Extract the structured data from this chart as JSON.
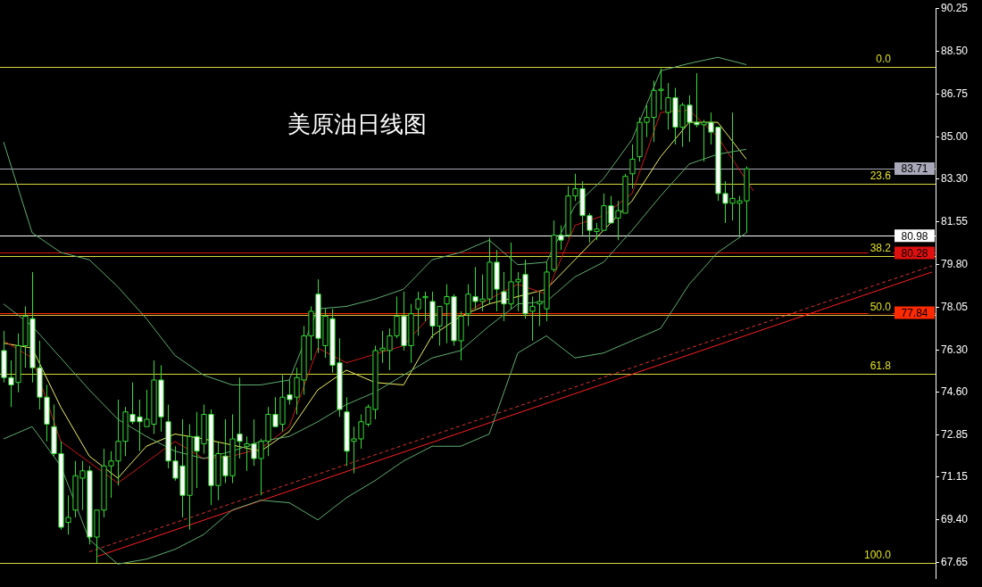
{
  "chart_data": {
    "type": "candlestick",
    "title": "美原油日线图",
    "categories": [
      null,
      null,
      null,
      null,
      null,
      null,
      null,
      null,
      null,
      null,
      null,
      null,
      null,
      null,
      null,
      null,
      null,
      null,
      null,
      null,
      null,
      null,
      null,
      null,
      null,
      null,
      null,
      null,
      null,
      null,
      null,
      null,
      null,
      null,
      null,
      null,
      null,
      null,
      null,
      null,
      null,
      null,
      null,
      null,
      null,
      null,
      null,
      null,
      null,
      null,
      null,
      null,
      null,
      null,
      null,
      null,
      null,
      null,
      null,
      null,
      null,
      null,
      null,
      null,
      null,
      null,
      null,
      null,
      null,
      null,
      null,
      null,
      null,
      null,
      null,
      null,
      null,
      null,
      null,
      null,
      null,
      null,
      null,
      null,
      null,
      null,
      null,
      null,
      null,
      null,
      null,
      null,
      null,
      null,
      null,
      null,
      null,
      null,
      null,
      null,
      null,
      null,
      null,
      null,
      null,
      null,
      null,
      null,
      null,
      null,
      null,
      null,
      null,
      null,
      null,
      null,
      null,
      null,
      null,
      null,
      null,
      null,
      null,
      null,
      null,
      null,
      null,
      null,
      null,
      null,
      null
    ],
    "color": "#33dd33",
    "colors": [
      "#ffffff",
      "#ffffff",
      "#000000",
      "#000000",
      "#ffffff",
      "#ffffff",
      "#ffffff",
      "#ffffff",
      "#ffffff",
      "#000000",
      "#000000",
      "#000000",
      "#ffffff",
      "#000000",
      "#000000",
      "#000000",
      "#000000",
      "#000000",
      "#ffffff",
      "#ffffff",
      "#000000",
      "#000000",
      "#ffffff",
      "#ffffff",
      "#ffffff",
      "#ffffff",
      "#000000",
      "#ffffff",
      "#000000",
      "#ffffff",
      "#000000",
      "#ffffff",
      "#000000",
      "#ffffff",
      "#000000",
      "#ffffff",
      "#000000",
      "#000000",
      "#ffffff",
      "#000000",
      "#ffffff",
      "#000000",
      "#000000",
      "#000000",
      "#ffffff",
      "#000000",
      "#ffffff",
      "#ffffff",
      "#ffffff",
      "#000000",
      "#000000",
      "#000000",
      "#000000",
      "#000000",
      "#000000",
      "#000000",
      "#ffffff",
      "#000000",
      "#000000",
      "#000000",
      "#ffffff",
      "#000000",
      "#000000",
      "#ffffff",
      "#000000",
      "#000000",
      "#ffffff",
      "#000000",
      "#000000",
      "#ffffff",
      "#ffffff",
      "#000000",
      "#000000",
      "#ffffff",
      "#000000",
      "#000000",
      "#000000",
      "#000000",
      "#ffffff",
      "#000000",
      "#000000",
      "#ffffff",
      "#ffffff",
      "#000000",
      "#000000",
      "#ffffff",
      "#000000",
      "#000000",
      "#000000",
      "#000000",
      "#000000",
      "#000000",
      "#000000",
      "#000000",
      "#ffffff",
      "#000000",
      "#ffffff",
      "#ffffff",
      "#000000",
      "#ffffff",
      "#ffffff",
      "#ffffff",
      "#000000",
      "#000000",
      "#000000",
      null,
      null,
      null,
      null,
      null,
      null,
      null,
      null,
      null,
      null,
      null,
      null,
      null,
      null,
      null,
      null,
      null,
      null,
      null,
      null,
      null,
      null,
      null,
      null,
      null,
      null
    ],
    "ohlc": [
      [
        76.3,
        77.1,
        75.0,
        75.2
      ],
      [
        75.2,
        75.9,
        74.0,
        74.9
      ],
      [
        75.0,
        77.0,
        74.6,
        76.5
      ],
      [
        76.5,
        78.1,
        75.6,
        77.7
      ],
      [
        77.6,
        79.5,
        75.0,
        75.6
      ],
      [
        75.6,
        76.7,
        73.9,
        74.4
      ],
      [
        74.4,
        74.9,
        72.6,
        73.3
      ],
      [
        73.2,
        74.1,
        72.0,
        72.1
      ],
      [
        72.1,
        72.6,
        69.0,
        69.1
      ],
      [
        69.3,
        70.4,
        68.8,
        69.5
      ],
      [
        69.8,
        71.8,
        69.5,
        71.2
      ],
      [
        71.1,
        71.8,
        69.8,
        71.4
      ],
      [
        71.4,
        71.6,
        68.4,
        68.7
      ],
      [
        68.7,
        69.8,
        67.65,
        69.8
      ],
      [
        69.8,
        72.3,
        69.5,
        71.6
      ],
      [
        71.6,
        72.2,
        70.3,
        71.8
      ],
      [
        71.8,
        74.3,
        70.8,
        72.6
      ],
      [
        72.6,
        74.0,
        72.0,
        73.8
      ],
      [
        73.7,
        75.0,
        73.3,
        73.4
      ],
      [
        73.6,
        74.3,
        72.2,
        73.4
      ],
      [
        73.2,
        74.7,
        73.2,
        73.5
      ],
      [
        73.3,
        75.9,
        72.9,
        75.1
      ],
      [
        75.1,
        75.7,
        73.0,
        73.6
      ],
      [
        73.4,
        74.1,
        71.5,
        71.8
      ],
      [
        71.8,
        72.4,
        71.0,
        71.1
      ],
      [
        71.6,
        73.5,
        69.5,
        70.4
      ],
      [
        70.4,
        73.3,
        69.0,
        72.8
      ],
      [
        72.8,
        73.8,
        70.7,
        72.2
      ],
      [
        72.5,
        74.1,
        72.1,
        73.7
      ],
      [
        73.7,
        73.9,
        70.0,
        70.8
      ],
      [
        70.8,
        72.6,
        70.2,
        72.1
      ],
      [
        72.0,
        73.5,
        70.9,
        71.2
      ],
      [
        71.2,
        73.7,
        70.9,
        72.7
      ],
      [
        72.9,
        75.2,
        71.9,
        72.6
      ],
      [
        72.4,
        72.8,
        71.4,
        72.5
      ],
      [
        72.5,
        73.5,
        71.6,
        71.9
      ],
      [
        71.9,
        72.7,
        70.4,
        72.6
      ],
      [
        72.6,
        74.0,
        72.0,
        73.7
      ],
      [
        73.7,
        74.4,
        73.2,
        73.2
      ],
      [
        73.3,
        75.3,
        73.0,
        74.4
      ],
      [
        74.5,
        75.1,
        74.1,
        74.3
      ],
      [
        74.4,
        75.6,
        73.7,
        75.2
      ],
      [
        75.1,
        77.3,
        74.5,
        76.9
      ],
      [
        76.9,
        78.1,
        75.9,
        77.9
      ],
      [
        78.6,
        79.2,
        76.2,
        76.8
      ],
      [
        76.5,
        78.0,
        76.0,
        77.7
      ],
      [
        77.6,
        78.0,
        75.4,
        75.7
      ],
      [
        75.8,
        76.8,
        73.6,
        73.9
      ],
      [
        73.8,
        74.4,
        71.6,
        72.2
      ],
      [
        72.6,
        73.2,
        71.3,
        72.7
      ],
      [
        72.7,
        73.7,
        72.3,
        73.4
      ],
      [
        73.3,
        74.1,
        73.2,
        74.0
      ],
      [
        73.9,
        76.5,
        73.5,
        76.3
      ],
      [
        76.3,
        77.1,
        75.8,
        76.4
      ],
      [
        76.3,
        77.2,
        75.5,
        76.9
      ],
      [
        76.9,
        78.5,
        76.8,
        77.7
      ],
      [
        77.7,
        78.7,
        76.3,
        76.5
      ],
      [
        76.5,
        78.2,
        75.8,
        77.8
      ],
      [
        78.0,
        78.7,
        76.9,
        78.4
      ],
      [
        78.45,
        78.7,
        77.5,
        78.5
      ],
      [
        78.3,
        78.7,
        76.8,
        77.3
      ],
      [
        77.3,
        78.1,
        76.5,
        78.1
      ],
      [
        78.2,
        79.0,
        76.6,
        78.5
      ],
      [
        78.5,
        78.6,
        76.5,
        76.7
      ],
      [
        76.7,
        77.9,
        75.9,
        77.7
      ],
      [
        77.8,
        79.0,
        77.3,
        78.6
      ],
      [
        78.5,
        79.7,
        78.0,
        78.3
      ],
      [
        78.3,
        79.4,
        77.9,
        78.4
      ],
      [
        78.4,
        80.9,
        78.2,
        79.9
      ],
      [
        79.9,
        80.4,
        77.9,
        78.8
      ],
      [
        78.7,
        79.5,
        77.5,
        78.2
      ],
      [
        78.2,
        80.7,
        78.0,
        79.1
      ],
      [
        79.1,
        79.5,
        77.9,
        79.2
      ],
      [
        79.4,
        80.0,
        77.6,
        77.8
      ],
      [
        77.9,
        78.5,
        76.7,
        78.1
      ],
      [
        78.2,
        78.7,
        77.3,
        78.3
      ],
      [
        78.0,
        79.9,
        77.5,
        79.5
      ],
      [
        79.6,
        81.6,
        79.5,
        81.0
      ],
      [
        81.0,
        81.4,
        80.4,
        80.8
      ],
      [
        81.0,
        83.0,
        80.9,
        82.6
      ],
      [
        82.6,
        83.5,
        82.4,
        82.9
      ],
      [
        82.9,
        83.2,
        81.0,
        81.8
      ],
      [
        81.8,
        81.9,
        80.7,
        81.2
      ],
      [
        81.15,
        81.5,
        80.8,
        81.25
      ],
      [
        81.2,
        82.7,
        81.2,
        82.2
      ],
      [
        82.2,
        82.6,
        81.5,
        81.5
      ],
      [
        81.7,
        82.4,
        80.8,
        82.0
      ],
      [
        81.9,
        83.5,
        81.9,
        83.4
      ],
      [
        83.5,
        84.7,
        82.9,
        84.1
      ],
      [
        84.2,
        85.8,
        84.0,
        85.6
      ],
      [
        85.6,
        86.3,
        85.0,
        85.8
      ],
      [
        85.8,
        87.3,
        84.8,
        86.9
      ],
      [
        86.9,
        87.8,
        86.1,
        86.95
      ],
      [
        86.0,
        87.2,
        85.3,
        86.6
      ],
      [
        86.6,
        87.0,
        84.7,
        85.4
      ],
      [
        85.4,
        86.4,
        84.6,
        86.3
      ],
      [
        86.3,
        86.7,
        84.8,
        85.6
      ],
      [
        85.6,
        87.6,
        85.4,
        85.5
      ],
      [
        85.5,
        85.7,
        84.0,
        85.6
      ],
      [
        85.6,
        86.0,
        84.7,
        85.2
      ],
      [
        85.4,
        85.4,
        82.4,
        82.7
      ],
      [
        82.7,
        83.2,
        81.5,
        82.3
      ],
      [
        82.3,
        86.0,
        81.6,
        82.5
      ],
      [
        82.3,
        82.6,
        81.0,
        82.4
      ],
      [
        82.4,
        83.8,
        81.1,
        83.71
      ],
      null,
      null,
      null,
      null,
      null,
      null,
      null,
      null,
      null,
      null,
      null,
      null,
      null,
      null,
      null,
      null,
      null,
      null,
      null,
      null,
      null,
      null,
      null,
      null,
      null,
      null
    ],
    "series": [
      {
        "type": "line",
        "color": "#5fae6f",
        "values": [
          84.8,
          null,
          null,
          null,
          81.1,
          null,
          null,
          null,
          80.3,
          null,
          null,
          null,
          80.0,
          null,
          null,
          null,
          78.9,
          null,
          null,
          null,
          77.6,
          null,
          null,
          null,
          76.1,
          null,
          null,
          null,
          75.3,
          null,
          null,
          null,
          74.9,
          null,
          null,
          null,
          74.9,
          null,
          null,
          null,
          75.1,
          null,
          null,
          null,
          78.0,
          null,
          null,
          null,
          78.1,
          null,
          null,
          null,
          78.4,
          null,
          null,
          null,
          78.8,
          null,
          null,
          null,
          80.0,
          null,
          null,
          null,
          80.3,
          null,
          null,
          null,
          80.8,
          null,
          null,
          null,
          79.8,
          null,
          null,
          null,
          79.9,
          null,
          null,
          null,
          82.2,
          null,
          null,
          null,
          83.3,
          null,
          null,
          null,
          84.9,
          null,
          null,
          null,
          87.7,
          null,
          null,
          null,
          88.0,
          null,
          null,
          null,
          88.25,
          null,
          null,
          null,
          87.95,
          null,
          null,
          null,
          null,
          null,
          null,
          null,
          null,
          null,
          null,
          null,
          null,
          null,
          null,
          null,
          null,
          null,
          null,
          null,
          null,
          null,
          null,
          null,
          null,
          null,
          null
        ]
      },
      {
        "type": "line",
        "color": "#5fae6f",
        "values": [
          78.2,
          null,
          null,
          null,
          77.3,
          null,
          null,
          null,
          76.0,
          null,
          null,
          null,
          74.7,
          null,
          null,
          null,
          73.5,
          null,
          null,
          null,
          72.8,
          null,
          null,
          null,
          72.2,
          null,
          null,
          null,
          71.9,
          null,
          null,
          null,
          72.2,
          null,
          null,
          null,
          72.6,
          null,
          null,
          null,
          72.8,
          null,
          null,
          null,
          73.4,
          null,
          null,
          null,
          74.1,
          null,
          null,
          null,
          74.6,
          null,
          null,
          null,
          75.3,
          null,
          null,
          null,
          76.0,
          null,
          null,
          null,
          76.3,
          null,
          null,
          null,
          77.3,
          null,
          null,
          null,
          78.2,
          null,
          null,
          null,
          78.3,
          null,
          null,
          null,
          79.3,
          null,
          null,
          null,
          79.9,
          null,
          null,
          null,
          81.2,
          null,
          null,
          null,
          82.6,
          null,
          null,
          null,
          83.9,
          null,
          null,
          null,
          84.3,
          null,
          null,
          null,
          84.5,
          null,
          null,
          null,
          null,
          null,
          null,
          null,
          null,
          null,
          null,
          null,
          null,
          null,
          null,
          null,
          null,
          null,
          null,
          null,
          null,
          null,
          null,
          null,
          null,
          null,
          null
        ]
      },
      {
        "type": "line",
        "color": "#5fae6f",
        "values": [
          72.7,
          null,
          null,
          null,
          73.2,
          null,
          null,
          null,
          71.6,
          null,
          null,
          null,
          68.6,
          null,
          null,
          null,
          67.6,
          null,
          null,
          null,
          67.8,
          null,
          null,
          null,
          68.2,
          null,
          null,
          null,
          68.8,
          null,
          null,
          null,
          69.8,
          null,
          null,
          null,
          70.2,
          null,
          null,
          null,
          70.1,
          null,
          null,
          null,
          69.4,
          null,
          null,
          null,
          70.3,
          null,
          null,
          null,
          71.0,
          null,
          null,
          null,
          71.8,
          null,
          null,
          null,
          72.4,
          null,
          null,
          null,
          72.4,
          null,
          null,
          null,
          72.9,
          null,
          null,
          null,
          76.2,
          null,
          null,
          null,
          76.9,
          null,
          null,
          null,
          76.0,
          null,
          null,
          null,
          76.2,
          null,
          null,
          null,
          76.7,
          null,
          null,
          null,
          77.2,
          null,
          null,
          null,
          79.0,
          null,
          null,
          null,
          80.3,
          null,
          null,
          null,
          81.1,
          null,
          null,
          null,
          null,
          null,
          null,
          null,
          null,
          null,
          null,
          null,
          null,
          null,
          null,
          null,
          null,
          null,
          null,
          null,
          null,
          null,
          null,
          null,
          null,
          null,
          null
        ]
      },
      {
        "type": "line",
        "color": "#d01818",
        "values": [
          76.7,
          null,
          null,
          null,
          76.0,
          null,
          null,
          null,
          72.6,
          null,
          null,
          null,
          null,
          null,
          null,
          null,
          70.9,
          null,
          null,
          null,
          null,
          null,
          null,
          null,
          72.6,
          null,
          null,
          null,
          71.9,
          null,
          null,
          null,
          72.0,
          null,
          null,
          null,
          72.3,
          null,
          null,
          null,
          73.2,
          null,
          null,
          null,
          76.4,
          null,
          null,
          null,
          75.8,
          null,
          null,
          null,
          null,
          null,
          null,
          null,
          76.5,
          null,
          null,
          null,
          77.8,
          null,
          null,
          null,
          77.7,
          null,
          null,
          null,
          78.4,
          null,
          null,
          null,
          79.0,
          null,
          null,
          null,
          78.6,
          null,
          null,
          null,
          81.4,
          null,
          null,
          null,
          81.8,
          null,
          null,
          null,
          82.7,
          null,
          null,
          null,
          86.0,
          null,
          null,
          null,
          86.1,
          null,
          null,
          null,
          85.0,
          null,
          null,
          null,
          null,
          82.8,
          null,
          null,
          null,
          null,
          null,
          null,
          null,
          null,
          null,
          null,
          null,
          null,
          null,
          null,
          null,
          null,
          null,
          null,
          null,
          null,
          null,
          null,
          null,
          null,
          null
        ]
      },
      {
        "type": "line",
        "color": "#f0f060",
        "values": [
          76.6,
          null,
          null,
          null,
          76.4,
          null,
          null,
          null,
          74.0,
          null,
          null,
          null,
          72.0,
          null,
          null,
          null,
          71.1,
          null,
          null,
          null,
          72.4,
          null,
          null,
          null,
          72.9,
          null,
          null,
          null,
          72.7,
          null,
          null,
          null,
          null,
          null,
          null,
          null,
          72.2,
          null,
          null,
          null,
          73.0,
          null,
          null,
          null,
          74.7,
          null,
          null,
          null,
          75.5,
          null,
          null,
          null,
          75.0,
          null,
          null,
          null,
          74.9,
          null,
          null,
          null,
          76.9,
          null,
          null,
          null,
          77.7,
          null,
          null,
          null,
          78.2,
          null,
          null,
          null,
          78.5,
          null,
          null,
          null,
          78.8,
          null,
          null,
          null,
          80.0,
          null,
          null,
          null,
          81.2,
          null,
          null,
          null,
          82.4,
          null,
          null,
          null,
          84.2,
          null,
          null,
          null,
          85.6,
          null,
          null,
          null,
          85.6,
          null,
          null,
          null,
          84.1,
          null,
          null,
          null,
          null,
          null,
          null,
          null,
          null,
          null,
          null,
          null,
          null,
          null,
          null,
          null,
          null,
          null,
          null,
          null,
          null,
          null,
          null,
          null,
          null,
          null,
          null
        ]
      },
      {
        "type": "line",
        "color": "#ff2020",
        "line_style": "solid",
        "values": [
          null,
          null,
          null,
          null,
          null,
          null,
          null,
          null,
          null,
          null,
          null,
          null,
          null,
          67.9,
          null,
          null,
          null,
          null,
          null,
          null,
          null,
          null,
          null,
          null,
          null,
          null,
          null,
          null,
          null,
          null,
          null,
          null,
          null,
          null,
          null,
          null,
          null,
          null,
          null,
          null,
          null,
          null,
          null,
          null,
          null,
          null,
          null,
          null,
          null,
          null,
          null,
          null,
          null,
          null,
          null,
          null,
          null,
          null,
          null,
          null,
          null,
          null,
          null,
          null,
          null,
          null,
          null,
          null,
          null,
          null,
          null,
          null,
          null,
          null,
          null,
          null,
          null,
          null,
          null,
          null,
          null,
          null,
          null,
          null,
          null,
          null,
          null,
          null,
          null,
          null,
          null,
          null,
          null,
          null,
          null,
          null,
          null,
          null,
          null,
          null,
          null,
          null,
          null,
          null,
          null,
          null,
          null,
          null,
          null,
          null,
          null,
          null,
          null,
          null,
          null,
          null,
          null,
          null,
          null,
          null,
          null,
          null,
          null,
          null,
          null,
          null,
          null,
          null,
          null,
          null,
          79.5
        ]
      },
      {
        "type": "line",
        "color": "#e03030",
        "line_style": "dashed",
        "values": [
          null,
          null,
          null,
          null,
          null,
          null,
          null,
          null,
          null,
          null,
          null,
          null,
          68.1,
          null,
          null,
          null,
          null,
          null,
          null,
          null,
          null,
          null,
          null,
          null,
          null,
          null,
          null,
          null,
          null,
          null,
          null,
          null,
          null,
          null,
          null,
          null,
          null,
          null,
          null,
          null,
          null,
          null,
          null,
          null,
          null,
          null,
          null,
          null,
          null,
          null,
          null,
          null,
          null,
          null,
          null,
          null,
          null,
          null,
          null,
          null,
          null,
          null,
          null,
          null,
          null,
          null,
          null,
          null,
          null,
          null,
          null,
          null,
          null,
          null,
          null,
          null,
          null,
          null,
          null,
          null,
          null,
          null,
          null,
          null,
          null,
          null,
          null,
          null,
          null,
          null,
          null,
          null,
          null,
          null,
          null,
          null,
          null,
          null,
          null,
          null,
          null,
          null,
          null,
          null,
          null,
          null,
          null,
          null,
          null,
          null,
          null,
          null,
          null,
          null,
          null,
          null,
          null,
          null,
          null,
          null,
          null,
          null,
          null,
          null,
          null,
          null,
          null,
          null,
          null,
          null,
          79.75
        ]
      }
    ],
    "ylim": [
      67.0,
      90.25
    ],
    "yticks": [
      {
        "value": 90.25,
        "label": "90.25"
      },
      {
        "value": 88.5,
        "label": "88.50"
      },
      {
        "value": 86.75,
        "label": "86.75"
      },
      {
        "value": 85.0,
        "label": "85.00"
      },
      {
        "value": 83.3,
        "label": "83.30"
      },
      {
        "value": 81.55,
        "label": "81.55"
      },
      {
        "value": 79.8,
        "label": "79.80"
      },
      {
        "value": 78.05,
        "label": "78.05"
      },
      {
        "value": 76.3,
        "label": "76.30"
      },
      {
        "value": 74.6,
        "label": "74.60"
      },
      {
        "value": 72.85,
        "label": "72.85"
      },
      {
        "value": 71.15,
        "label": "71.15"
      },
      {
        "value": 69.4,
        "label": "69.40"
      },
      {
        "value": 67.65,
        "label": "67.65"
      }
    ],
    "ref_lines": [
      {
        "axis": "y",
        "value": 87.87,
        "color": "#d8d840"
      },
      {
        "axis": "y",
        "value": 83.1,
        "color": "#d8d840"
      },
      {
        "axis": "y",
        "value": 80.15,
        "color": "#d8d840"
      },
      {
        "axis": "y",
        "value": 77.76,
        "color": "#e8c040"
      },
      {
        "axis": "y",
        "value": 75.37,
        "color": "#d8d840"
      },
      {
        "axis": "y",
        "value": 67.65,
        "color": "#d8d840"
      },
      {
        "axis": "y",
        "value": 83.71,
        "label": "83.71",
        "color": "#a8a8b8"
      },
      {
        "axis": "y",
        "value": 80.98,
        "label": "80.98",
        "color": "#ffffff"
      },
      {
        "axis": "y",
        "value": 80.28,
        "label": "80.28",
        "color": "#e01010"
      },
      {
        "axis": "y",
        "value": 77.84,
        "label": "77.84",
        "color": "#ff2a00"
      }
    ],
    "annotations": [
      {
        "text": "0.0",
        "y": 87.87
      },
      {
        "text": "23.6",
        "y": 83.1
      },
      {
        "text": "38.2",
        "y": 80.15
      },
      {
        "text": "50.0",
        "y": 77.76
      },
      {
        "text": "61.8",
        "y": 75.37
      },
      {
        "text": "100.0",
        "y": 67.65
      }
    ],
    "tick_labels": "y",
    "grid": false,
    "legend": false,
    "marker": "none"
  }
}
